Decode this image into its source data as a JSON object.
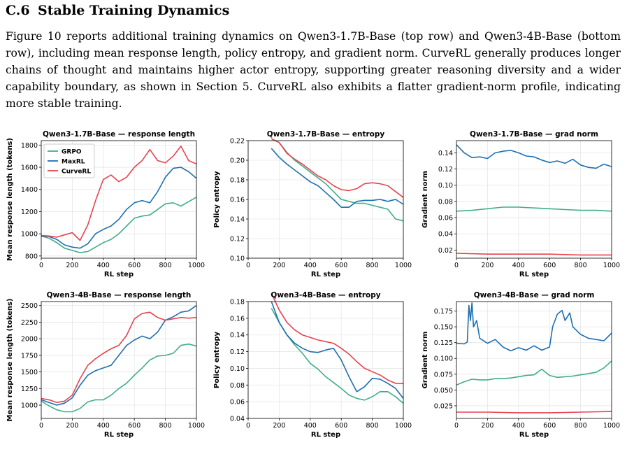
{
  "section": {
    "number": "C.6",
    "title": "Stable Training Dynamics"
  },
  "paragraph": "Figure 10 reports additional training dynamics on Qwen3-1.7B-Base (top row) and Qwen3-4B-Base (bottom row), including mean response length, policy entropy, and gradient norm. CurveRL generally produces longer chains of thought and maintains higher actor entropy, supporting greater reasoning diversity and a wider capability boundary, as shown in Section 5. CurveRL also exhibits a flatter gradient-norm profile, indicating more stable training.",
  "colors": {
    "GRPO": "#3fae8a",
    "MaxRL": "#1f6fb0",
    "CurveRL": "#e8434f"
  },
  "chart_data": [
    {
      "type": "line",
      "title": "Qwen3-1.7B-Base — response length",
      "xlabel": "RL step",
      "ylabel": "Mean response length (tokens)",
      "xlim": [
        0,
        1000
      ],
      "ylim": [
        780,
        1840
      ],
      "xticks": [
        0,
        200,
        400,
        600,
        800,
        1000
      ],
      "yticks": [
        800,
        1000,
        1200,
        1400,
        1600,
        1800
      ],
      "grid": true,
      "legend": "top-left",
      "series": [
        {
          "name": "GRPO",
          "x": [
            0,
            50,
            100,
            150,
            200,
            250,
            300,
            350,
            400,
            450,
            500,
            550,
            600,
            650,
            700,
            750,
            800,
            850,
            900,
            950,
            1000
          ],
          "y": [
            980,
            960,
            920,
            870,
            850,
            830,
            840,
            880,
            920,
            950,
            1000,
            1070,
            1140,
            1160,
            1170,
            1220,
            1270,
            1280,
            1250,
            1290,
            1330
          ]
        },
        {
          "name": "MaxRL",
          "x": [
            0,
            50,
            100,
            150,
            200,
            250,
            300,
            350,
            400,
            450,
            500,
            550,
            600,
            650,
            700,
            750,
            800,
            850,
            900,
            950,
            1000
          ],
          "y": [
            980,
            975,
            950,
            900,
            880,
            870,
            910,
            1000,
            1040,
            1070,
            1130,
            1220,
            1280,
            1300,
            1280,
            1380,
            1510,
            1590,
            1600,
            1560,
            1500
          ]
        },
        {
          "name": "CurveRL",
          "x": [
            0,
            50,
            100,
            150,
            200,
            250,
            300,
            350,
            400,
            450,
            500,
            550,
            600,
            650,
            700,
            750,
            800,
            850,
            900,
            950,
            1000
          ],
          "y": [
            985,
            980,
            970,
            990,
            1010,
            940,
            1080,
            1300,
            1490,
            1530,
            1470,
            1510,
            1600,
            1660,
            1760,
            1660,
            1640,
            1700,
            1790,
            1660,
            1630
          ]
        }
      ]
    },
    {
      "type": "line",
      "title": "Qwen3-1.7B-Base — entropy",
      "xlabel": "RL step",
      "ylabel": "Policy entropy",
      "xlim": [
        0,
        1000
      ],
      "ylim": [
        0.1,
        0.22
      ],
      "xticks": [
        0,
        200,
        400,
        600,
        800,
        1000
      ],
      "yticks": [
        0.1,
        0.12,
        0.14,
        0.16,
        0.18,
        0.2,
        0.22
      ],
      "grid": true,
      "series": [
        {
          "name": "GRPO",
          "x": [
            150,
            200,
            250,
            300,
            350,
            400,
            450,
            500,
            550,
            600,
            650,
            700,
            750,
            800,
            850,
            900,
            950,
            1000
          ],
          "y": [
            0.222,
            0.218,
            0.208,
            0.2,
            0.194,
            0.188,
            0.182,
            0.176,
            0.168,
            0.16,
            0.158,
            0.156,
            0.156,
            0.154,
            0.152,
            0.15,
            0.14,
            0.138
          ]
        },
        {
          "name": "MaxRL",
          "x": [
            150,
            200,
            250,
            300,
            350,
            400,
            450,
            500,
            550,
            600,
            650,
            700,
            750,
            800,
            850,
            900,
            950,
            1000
          ],
          "y": [
            0.212,
            0.203,
            0.196,
            0.19,
            0.184,
            0.178,
            0.174,
            0.167,
            0.16,
            0.152,
            0.152,
            0.158,
            0.159,
            0.159,
            0.16,
            0.158,
            0.16,
            0.155
          ]
        },
        {
          "name": "CurveRL",
          "x": [
            150,
            200,
            250,
            300,
            350,
            400,
            450,
            500,
            550,
            600,
            650,
            700,
            750,
            800,
            850,
            900,
            950,
            1000
          ],
          "y": [
            0.222,
            0.218,
            0.207,
            0.201,
            0.196,
            0.19,
            0.184,
            0.18,
            0.174,
            0.17,
            0.169,
            0.171,
            0.176,
            0.177,
            0.176,
            0.174,
            0.168,
            0.162
          ]
        }
      ]
    },
    {
      "type": "line",
      "title": "Qwen3-1.7B-Base — grad norm",
      "xlabel": "RL step",
      "ylabel": "Gradient norm",
      "xlim": [
        0,
        1000
      ],
      "ylim": [
        0.01,
        0.155
      ],
      "xticks": [
        0,
        200,
        400,
        600,
        800,
        1000
      ],
      "yticks": [
        0.02,
        0.04,
        0.06,
        0.08,
        0.1,
        0.12,
        0.14
      ],
      "grid": true,
      "series": [
        {
          "name": "GRPO",
          "x": [
            0,
            100,
            200,
            300,
            400,
            500,
            600,
            700,
            800,
            900,
            1000
          ],
          "y": [
            0.068,
            0.069,
            0.071,
            0.073,
            0.073,
            0.072,
            0.071,
            0.07,
            0.069,
            0.069,
            0.068
          ]
        },
        {
          "name": "MaxRL",
          "x": [
            0,
            50,
            100,
            150,
            200,
            250,
            300,
            350,
            400,
            450,
            500,
            550,
            600,
            650,
            700,
            750,
            800,
            850,
            900,
            950,
            1000
          ],
          "y": [
            0.15,
            0.14,
            0.134,
            0.135,
            0.133,
            0.14,
            0.142,
            0.143,
            0.14,
            0.136,
            0.135,
            0.131,
            0.128,
            0.13,
            0.127,
            0.132,
            0.125,
            0.122,
            0.121,
            0.126,
            0.123
          ]
        },
        {
          "name": "CurveRL",
          "x": [
            0,
            200,
            400,
            600,
            800,
            1000
          ],
          "y": [
            0.016,
            0.015,
            0.015,
            0.015,
            0.014,
            0.014
          ]
        }
      ]
    },
    {
      "type": "line",
      "title": "Qwen3-4B-Base — response length",
      "xlabel": "RL step",
      "ylabel": "Mean response length (tokens)",
      "xlim": [
        0,
        1000
      ],
      "ylim": [
        800,
        2560
      ],
      "xticks": [
        0,
        200,
        400,
        600,
        800,
        1000
      ],
      "yticks": [
        1000,
        1250,
        1500,
        1750,
        2000,
        2250,
        2500
      ],
      "grid": true,
      "series": [
        {
          "name": "GRPO",
          "x": [
            0,
            50,
            100,
            150,
            200,
            250,
            300,
            350,
            400,
            450,
            500,
            550,
            600,
            650,
            700,
            750,
            800,
            850,
            900,
            950,
            1000
          ],
          "y": [
            1060,
            990,
            930,
            900,
            900,
            950,
            1050,
            1080,
            1080,
            1150,
            1250,
            1330,
            1450,
            1560,
            1680,
            1740,
            1750,
            1780,
            1900,
            1920,
            1890
          ]
        },
        {
          "name": "MaxRL",
          "x": [
            0,
            50,
            100,
            150,
            200,
            250,
            300,
            350,
            400,
            450,
            500,
            550,
            600,
            650,
            700,
            750,
            800,
            850,
            900,
            950,
            1000
          ],
          "y": [
            1080,
            1040,
            1000,
            1030,
            1110,
            1300,
            1450,
            1520,
            1560,
            1600,
            1750,
            1900,
            1980,
            2040,
            2000,
            2100,
            2280,
            2330,
            2400,
            2420,
            2500
          ]
        },
        {
          "name": "CurveRL",
          "x": [
            0,
            50,
            100,
            150,
            200,
            250,
            300,
            350,
            400,
            450,
            500,
            550,
            600,
            650,
            700,
            750,
            800,
            850,
            900,
            950,
            1000
          ],
          "y": [
            1100,
            1080,
            1040,
            1060,
            1150,
            1400,
            1600,
            1700,
            1780,
            1850,
            1900,
            2050,
            2300,
            2380,
            2400,
            2320,
            2280,
            2300,
            2320,
            2310,
            2320
          ]
        }
      ]
    },
    {
      "type": "line",
      "title": "Qwen3-4B-Base — entropy",
      "xlabel": "RL step",
      "ylabel": "Policy entropy",
      "xlim": [
        0,
        1000
      ],
      "ylim": [
        0.04,
        0.18
      ],
      "xticks": [
        0,
        200,
        400,
        600,
        800,
        1000
      ],
      "yticks": [
        0.04,
        0.06,
        0.08,
        0.1,
        0.12,
        0.14,
        0.16,
        0.18
      ],
      "grid": true,
      "series": [
        {
          "name": "GRPO",
          "x": [
            150,
            200,
            250,
            300,
            350,
            400,
            450,
            500,
            550,
            600,
            650,
            700,
            750,
            800,
            850,
            900,
            950,
            1000
          ],
          "y": [
            0.172,
            0.155,
            0.14,
            0.128,
            0.118,
            0.106,
            0.099,
            0.09,
            0.083,
            0.076,
            0.068,
            0.064,
            0.062,
            0.066,
            0.072,
            0.072,
            0.066,
            0.058
          ]
        },
        {
          "name": "MaxRL",
          "x": [
            150,
            200,
            250,
            300,
            350,
            400,
            450,
            500,
            550,
            600,
            650,
            700,
            750,
            800,
            850,
            900,
            950,
            1000
          ],
          "y": [
            0.18,
            0.155,
            0.14,
            0.13,
            0.124,
            0.12,
            0.119,
            0.122,
            0.124,
            0.11,
            0.09,
            0.072,
            0.078,
            0.088,
            0.087,
            0.082,
            0.076,
            0.064
          ]
        },
        {
          "name": "CurveRL",
          "x": [
            150,
            200,
            250,
            300,
            350,
            400,
            450,
            500,
            550,
            600,
            650,
            700,
            750,
            800,
            850,
            900,
            950,
            1000
          ],
          "y": [
            0.19,
            0.17,
            0.155,
            0.146,
            0.14,
            0.137,
            0.134,
            0.132,
            0.13,
            0.124,
            0.117,
            0.108,
            0.1,
            0.096,
            0.092,
            0.086,
            0.082,
            0.082
          ]
        }
      ]
    },
    {
      "type": "line",
      "title": "Qwen3-4B-Base — grad norm",
      "xlabel": "RL step",
      "ylabel": "Gradient norm",
      "xlim": [
        0,
        1000
      ],
      "ylim": [
        0.005,
        0.19
      ],
      "xticks": [
        0,
        200,
        400,
        600,
        800,
        1000
      ],
      "yticks": [
        0.025,
        0.05,
        0.075,
        0.1,
        0.125,
        0.15,
        0.175
      ],
      "grid": true,
      "series": [
        {
          "name": "GRPO",
          "x": [
            0,
            50,
            100,
            150,
            200,
            250,
            300,
            350,
            400,
            450,
            500,
            550,
            600,
            650,
            700,
            750,
            800,
            850,
            900,
            950,
            1000
          ],
          "y": [
            0.058,
            0.063,
            0.067,
            0.066,
            0.066,
            0.068,
            0.068,
            0.069,
            0.071,
            0.073,
            0.074,
            0.083,
            0.073,
            0.07,
            0.071,
            0.072,
            0.074,
            0.076,
            0.078,
            0.085,
            0.096
          ]
        },
        {
          "name": "MaxRL",
          "x": [
            0,
            50,
            70,
            80,
            90,
            100,
            110,
            130,
            150,
            200,
            250,
            300,
            350,
            400,
            450,
            500,
            550,
            600,
            620,
            650,
            680,
            700,
            730,
            750,
            800,
            850,
            900,
            950,
            1000
          ],
          "y": [
            0.124,
            0.123,
            0.126,
            0.184,
            0.16,
            0.188,
            0.15,
            0.16,
            0.132,
            0.124,
            0.13,
            0.118,
            0.112,
            0.117,
            0.113,
            0.12,
            0.113,
            0.118,
            0.15,
            0.17,
            0.176,
            0.16,
            0.172,
            0.15,
            0.138,
            0.132,
            0.13,
            0.128,
            0.14
          ]
        },
        {
          "name": "CurveRL",
          "x": [
            0,
            200,
            400,
            600,
            800,
            1000
          ],
          "y": [
            0.015,
            0.015,
            0.014,
            0.014,
            0.015,
            0.016
          ]
        }
      ]
    }
  ]
}
